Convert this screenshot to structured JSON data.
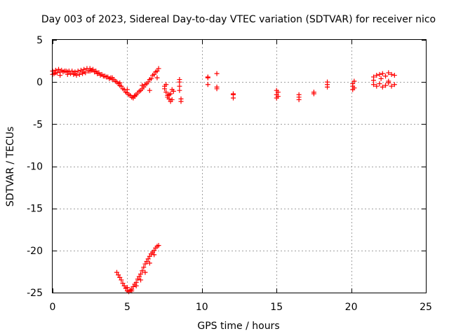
{
  "chart_data": {
    "type": "scatter",
    "title": "Day 003 of 2023, Sidereal Day-to-day VTEC variation (SDTVAR) for receiver nico",
    "xlabel": "GPS time / hours",
    "ylabel": "SDTVAR / TECUs",
    "xlim": [
      0,
      25
    ],
    "ylim": [
      -25,
      5
    ],
    "x_ticks": [
      0,
      5,
      10,
      15,
      20,
      25
    ],
    "x_tick_labels": [
      "0",
      "5",
      "10",
      "15",
      "20",
      "25"
    ],
    "y_ticks": [
      -25,
      -20,
      -15,
      -10,
      -5,
      0,
      5
    ],
    "y_tick_labels": [
      "-25",
      "-20",
      "-15",
      "-10",
      "-5",
      "0",
      "5"
    ],
    "grid": true,
    "marker": "+",
    "series": [
      {
        "name": "SDTVAR",
        "color": "#ff0000",
        "x": [
          0.0,
          0.1,
          0.2,
          0.3,
          0.5,
          0.7,
          0.9,
          1.1,
          1.3,
          1.5,
          1.7,
          1.9,
          2.1,
          2.3,
          2.5,
          2.7,
          2.9,
          3.1,
          3.3,
          3.5,
          3.7,
          3.9,
          4.1,
          4.3,
          4.5,
          4.7,
          4.9,
          5.1,
          5.3,
          5.5,
          5.7,
          5.9,
          6.1,
          6.3,
          6.5,
          6.7,
          6.9,
          7.1,
          0.0,
          0.2,
          0.4,
          0.6,
          0.8,
          1.0,
          1.2,
          1.4,
          1.6,
          1.8,
          2.0,
          2.2,
          2.4,
          2.6,
          2.8,
          3.0,
          3.2,
          3.4,
          3.6,
          3.8,
          4.0,
          4.2,
          4.4,
          4.6,
          4.8,
          5.0,
          5.2,
          5.4,
          5.6,
          5.8,
          6.0,
          6.2,
          6.4,
          6.6,
          6.8,
          7.0,
          0.5,
          1.0,
          1.5,
          2.0,
          2.5,
          3.0,
          3.5,
          4.0,
          4.5,
          5.0,
          5.5,
          6.0,
          6.5,
          7.0,
          7.5,
          7.6,
          7.7,
          7.8,
          7.9,
          8.0,
          7.5,
          7.7,
          7.9,
          8.1,
          7.6,
          7.8,
          8.0,
          8.5,
          8.5,
          8.5,
          8.6,
          8.6,
          8.5,
          10.4,
          10.4,
          10.4,
          11.0,
          11.0,
          11.0,
          12.1,
          12.1,
          12.1,
          15.0,
          15.0,
          15.0,
          15.1,
          15.1,
          16.5,
          16.5,
          16.5,
          17.5,
          17.5,
          18.4,
          18.4,
          18.4,
          20.1,
          20.1,
          20.1,
          20.2,
          20.2,
          21.5,
          21.7,
          21.9,
          22.1,
          22.3,
          22.5,
          22.7,
          22.9,
          21.5,
          21.7,
          21.9,
          22.1,
          22.3,
          22.5,
          22.7,
          22.9,
          21.5,
          22.0,
          22.5,
          4.3,
          4.4,
          4.5,
          4.6,
          4.7,
          4.8,
          4.9,
          5.0,
          5.1,
          5.2,
          5.3,
          5.4,
          5.5,
          5.6,
          5.7,
          5.8,
          5.9,
          6.0,
          6.1,
          6.2,
          6.3,
          6.4,
          6.5,
          6.6,
          6.7,
          6.8,
          6.9,
          7.0,
          7.1,
          5.0,
          5.3,
          5.6,
          5.9,
          6.2,
          6.5,
          6.8
        ],
        "y": [
          0.9,
          1.0,
          1.1,
          1.1,
          1.2,
          1.2,
          1.3,
          1.3,
          1.3,
          1.2,
          1.3,
          1.4,
          1.5,
          1.6,
          1.6,
          1.5,
          1.3,
          1.1,
          0.9,
          0.7,
          0.6,
          0.5,
          0.3,
          0.0,
          -0.4,
          -0.8,
          -1.2,
          -1.5,
          -1.8,
          -1.6,
          -1.3,
          -1.0,
          -0.6,
          -0.2,
          0.3,
          0.8,
          1.2,
          1.6,
          1.3,
          1.4,
          1.5,
          1.4,
          1.3,
          1.2,
          1.0,
          0.9,
          0.8,
          0.9,
          1.0,
          1.1,
          1.3,
          1.4,
          1.2,
          1.0,
          0.8,
          0.7,
          0.6,
          0.4,
          0.3,
          0.1,
          -0.2,
          -0.5,
          -0.9,
          -1.3,
          -1.6,
          -1.9,
          -1.5,
          -1.1,
          -0.8,
          -0.3,
          0.0,
          0.4,
          0.9,
          1.3,
          0.8,
          0.9,
          1.0,
          1.2,
          1.3,
          1.0,
          0.7,
          0.5,
          -0.1,
          -0.9,
          -1.7,
          -0.4,
          -1.0,
          0.5,
          -0.8,
          -1.2,
          -1.6,
          -2.0,
          -1.4,
          -0.9,
          -0.5,
          -1.8,
          -2.3,
          -1.1,
          -0.3,
          -1.5,
          -2.1,
          0.3,
          -0.5,
          -1.0,
          -2.0,
          -2.3,
          0.0,
          0.6,
          0.5,
          -0.3,
          1.0,
          -0.6,
          -0.8,
          -1.4,
          -1.9,
          -1.5,
          -1.0,
          -1.5,
          -1.9,
          -1.2,
          -1.7,
          -1.5,
          -1.8,
          -2.1,
          -1.2,
          -1.4,
          -0.3,
          0.0,
          -0.6,
          -0.2,
          -0.5,
          -0.9,
          0.1,
          -0.7,
          0.6,
          0.8,
          0.9,
          1.0,
          0.7,
          1.1,
          0.9,
          0.8,
          -0.3,
          -0.5,
          -0.2,
          -0.6,
          -0.4,
          -0.1,
          -0.5,
          -0.3,
          0.2,
          0.4,
          0.1,
          -22.6,
          -22.9,
          -23.2,
          -23.5,
          -23.9,
          -24.2,
          -24.5,
          -24.8,
          -24.9,
          -24.7,
          -24.6,
          -24.3,
          -24.0,
          -23.8,
          -23.4,
          -23.1,
          -22.8,
          -22.4,
          -22.0,
          -21.6,
          -21.3,
          -21.0,
          -20.7,
          -20.4,
          -20.2,
          -20.0,
          -19.7,
          -19.5,
          -19.4,
          -24.4,
          -24.8,
          -24.2,
          -23.5,
          -22.6,
          -21.5,
          -20.5
        ]
      }
    ]
  }
}
